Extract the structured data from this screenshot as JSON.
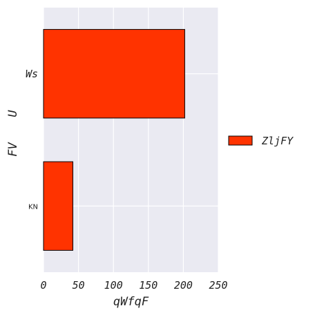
{
  "chart_data": {
    "type": "bar",
    "orientation": "horizontal",
    "categories": [
      "Ws",
      "KN"
    ],
    "series": [
      {
        "name": "ZljFY",
        "values": [
          202,
          42
        ],
        "color": "#ff3300"
      }
    ],
    "xlabel": "qWfqF",
    "ylabel_lines": [
      "FV",
      "U"
    ],
    "xlim": [
      0,
      250
    ],
    "xticks": [
      0,
      50,
      100,
      150,
      200,
      250
    ],
    "xtick_labels": [
      "0",
      "50",
      "100",
      "150",
      "200",
      "250"
    ],
    "grid": true,
    "background_color": "#eaeaf2",
    "legend_position": "right"
  }
}
